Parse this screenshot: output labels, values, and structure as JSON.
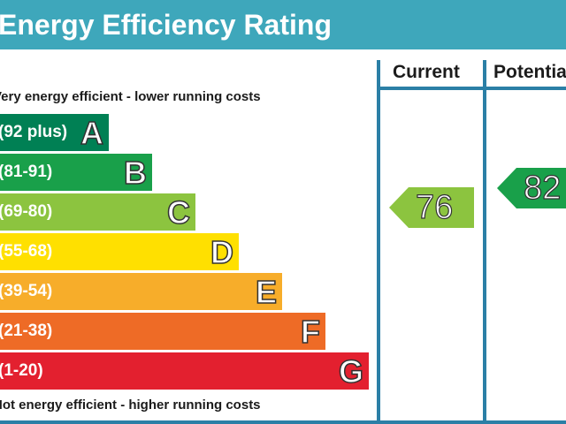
{
  "header": {
    "title": "Energy Efficiency Rating"
  },
  "columns": {
    "current": "Current",
    "potential": "Potential"
  },
  "captions": {
    "top": "Very energy efficient - lower running costs",
    "bottom": "Not energy efficient - higher running costs"
  },
  "chart_data": {
    "type": "bar",
    "title": "Energy Efficiency Rating",
    "bands": [
      {
        "letter": "A",
        "range": "(92 plus)",
        "color": "#008054"
      },
      {
        "letter": "B",
        "range": "(81-91)",
        "color": "#19a04a"
      },
      {
        "letter": "C",
        "range": "(69-80)",
        "color": "#8cc43f"
      },
      {
        "letter": "D",
        "range": "(55-68)",
        "color": "#ffe000"
      },
      {
        "letter": "E",
        "range": "(39-54)",
        "color": "#f7ad2a"
      },
      {
        "letter": "F",
        "range": "(21-38)",
        "color": "#ee6b26"
      },
      {
        "letter": "G",
        "range": "(1-20)",
        "color": "#e3202f"
      }
    ],
    "current": {
      "value": 76,
      "band": "C",
      "color": "#8cc43f"
    },
    "potential": {
      "value": 82,
      "band": "B",
      "color": "#19a04a"
    }
  }
}
